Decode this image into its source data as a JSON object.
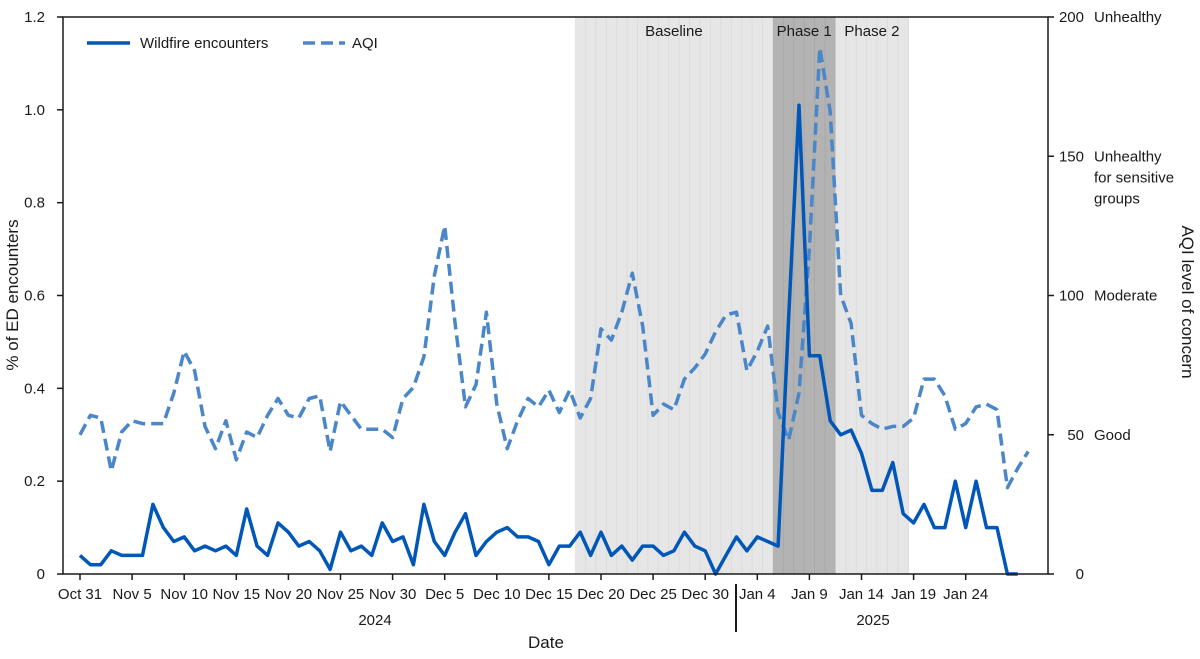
{
  "chart_data": {
    "type": "line",
    "xlabel": "Date",
    "ylabel_left": "% of ED encounters",
    "ylabel_right": "AQI level of concern",
    "ylim_left": [
      0,
      1.2
    ],
    "ylim_right": [
      0,
      200
    ],
    "start_label": "Oct 31",
    "x_tick_labels": [
      "Oct 31",
      "Nov 5",
      "Nov 10",
      "Nov 15",
      "Nov 20",
      "Nov 25",
      "Nov 30",
      "Dec 5",
      "Dec 10",
      "Dec 15",
      "Dec 20",
      "Dec 25",
      "Dec 30",
      "Jan 4",
      "Jan 9",
      "Jan 14",
      "Jan 19",
      "Jan 24"
    ],
    "y_left_ticks": [
      "0",
      "0.2",
      "0.4",
      "0.6",
      "0.8",
      "1.0",
      "1.2"
    ],
    "y_right_ticks": [
      {
        "value": 0,
        "label": "0",
        "category": ""
      },
      {
        "value": 50,
        "label": "50",
        "category": "Good"
      },
      {
        "value": 100,
        "label": "100",
        "category": "Moderate"
      },
      {
        "value": 150,
        "label": "150",
        "category": "Unhealthy for sensitive groups"
      },
      {
        "value": 200,
        "label": "200",
        "category": "Unhealthy"
      }
    ],
    "year_labels": [
      "2024",
      "2025"
    ],
    "bands": [
      {
        "label": "Baseline",
        "start": "Dec 18",
        "end": "Jan 6",
        "color": "#e6e6e6"
      },
      {
        "label": "Phase 1",
        "start": "Jan 6",
        "end": "Jan 12",
        "color": "#b3b3b3"
      },
      {
        "label": "Phase 2",
        "start": "Jan 12",
        "end": "Jan 19",
        "color": "#e6e6e6"
      }
    ],
    "legend_position": "top-left",
    "series": [
      {
        "name": "Wildfire encounters",
        "axis": "left",
        "style": "solid",
        "color": "#0057b8",
        "values": [
          0.04,
          0.02,
          0.02,
          0.05,
          0.04,
          0.04,
          0.04,
          0.15,
          0.1,
          0.07,
          0.08,
          0.05,
          0.06,
          0.05,
          0.06,
          0.04,
          0.14,
          0.06,
          0.04,
          0.11,
          0.09,
          0.06,
          0.07,
          0.05,
          0.01,
          0.09,
          0.05,
          0.06,
          0.04,
          0.11,
          0.07,
          0.08,
          0.02,
          0.15,
          0.07,
          0.04,
          0.09,
          0.13,
          0.04,
          0.07,
          0.09,
          0.1,
          0.08,
          0.08,
          0.07,
          0.02,
          0.06,
          0.06,
          0.09,
          0.04,
          0.09,
          0.04,
          0.06,
          0.03,
          0.06,
          0.06,
          0.04,
          0.05,
          0.09,
          0.06,
          0.05,
          0.0,
          0.04,
          0.08,
          0.05,
          0.08,
          0.07,
          0.06,
          0.55,
          1.01,
          0.47,
          0.47,
          0.33,
          0.3,
          0.31,
          0.26,
          0.18,
          0.18,
          0.24,
          0.13,
          0.11,
          0.15,
          0.1,
          0.1,
          0.2,
          0.1,
          0.2,
          0.1,
          0.1,
          0.0,
          0.0
        ]
      },
      {
        "name": "AQI",
        "axis": "right",
        "style": "dashed",
        "color": "#4a86c8",
        "values": [
          50,
          57,
          56,
          37,
          51,
          55,
          54,
          54,
          54,
          65,
          80,
          73,
          53,
          45,
          55,
          41,
          51,
          49,
          57,
          63,
          57,
          56,
          63,
          64,
          44,
          62,
          57,
          52,
          52,
          52,
          49,
          63,
          67,
          78,
          107,
          125,
          90,
          60,
          68,
          94,
          61,
          45,
          55,
          63,
          60,
          66,
          58,
          66,
          56,
          63,
          88,
          84,
          94,
          108,
          89,
          57,
          61,
          59,
          70,
          74,
          79,
          87,
          93,
          94,
          73,
          80,
          89,
          58,
          48,
          65,
          117,
          189,
          166,
          100,
          90,
          57,
          54,
          52,
          53,
          53,
          56,
          70,
          70,
          64,
          52,
          54,
          60,
          61,
          59,
          31,
          38,
          44
        ]
      }
    ]
  }
}
